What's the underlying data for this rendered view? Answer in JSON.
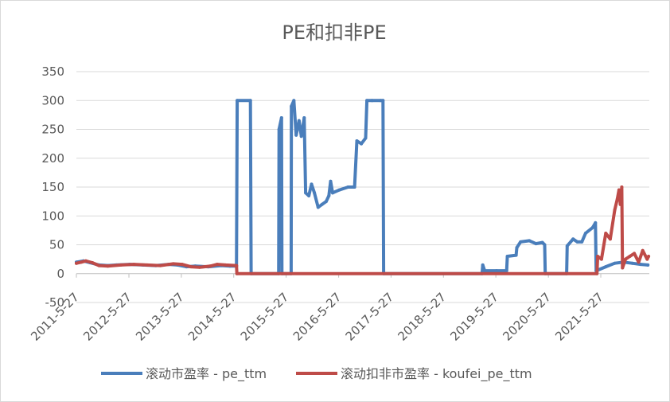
{
  "chart_data": {
    "type": "line",
    "title": "PE和扣非PE",
    "xlabel": "",
    "ylabel": "",
    "ylim": [
      -50,
      350
    ],
    "yticks": [
      -50,
      0,
      50,
      100,
      150,
      200,
      250,
      300,
      350
    ],
    "xlim": [
      "2011-05-27",
      "2022-04-30"
    ],
    "xticks": [
      "2011-5-27",
      "2012-5-27",
      "2013-5-27",
      "2014-5-27",
      "2015-5-27",
      "2016-5-27",
      "2017-5-27",
      "2018-5-27",
      "2019-5-27",
      "2020-5-27",
      "2021-5-27"
    ],
    "grid": "horizontal",
    "legend_position": "bottom",
    "series": [
      {
        "name": "滚动市盈率 - pe_ttm",
        "color": "#4a7ebb",
        "points": [
          [
            "2011-05-27",
            20
          ],
          [
            "2011-07-15",
            22
          ],
          [
            "2011-09-01",
            19
          ],
          [
            "2011-11-01",
            15
          ],
          [
            "2012-01-01",
            14
          ],
          [
            "2012-03-01",
            15
          ],
          [
            "2012-06-01",
            16
          ],
          [
            "2012-09-01",
            15
          ],
          [
            "2012-12-01",
            14
          ],
          [
            "2013-03-01",
            16
          ],
          [
            "2013-05-01",
            15
          ],
          [
            "2013-07-01",
            12
          ],
          [
            "2013-09-01",
            13
          ],
          [
            "2013-12-01",
            12
          ],
          [
            "2014-03-01",
            14
          ],
          [
            "2014-05-01",
            13
          ],
          [
            "2014-06-15",
            13
          ],
          [
            "2014-06-20",
            300
          ],
          [
            "2014-09-20",
            300
          ],
          [
            "2014-09-25",
            0
          ],
          [
            "2015-04-05",
            0
          ],
          [
            "2015-04-08",
            250
          ],
          [
            "2015-04-25",
            270
          ],
          [
            "2015-04-28",
            0
          ],
          [
            "2015-07-01",
            0
          ],
          [
            "2015-07-03",
            290
          ],
          [
            "2015-07-20",
            300
          ],
          [
            "2015-08-05",
            240
          ],
          [
            "2015-08-25",
            265
          ],
          [
            "2015-09-10",
            238
          ],
          [
            "2015-09-30",
            270
          ],
          [
            "2015-10-10",
            140
          ],
          [
            "2015-11-01",
            135
          ],
          [
            "2015-11-20",
            155
          ],
          [
            "2015-12-10",
            140
          ],
          [
            "2016-01-05",
            115
          ],
          [
            "2016-02-01",
            120
          ],
          [
            "2016-03-01",
            125
          ],
          [
            "2016-03-20",
            135
          ],
          [
            "2016-04-01",
            160
          ],
          [
            "2016-04-15",
            140
          ],
          [
            "2016-06-01",
            145
          ],
          [
            "2016-08-01",
            150
          ],
          [
            "2016-09-15",
            150
          ],
          [
            "2016-10-01",
            230
          ],
          [
            "2016-11-01",
            225
          ],
          [
            "2016-12-01",
            235
          ],
          [
            "2016-12-10",
            300
          ],
          [
            "2017-01-15",
            300
          ],
          [
            "2017-03-15",
            300
          ],
          [
            "2017-04-01",
            300
          ],
          [
            "2017-04-05",
            0
          ],
          [
            "2019-02-20",
            0
          ],
          [
            "2019-02-25",
            15
          ],
          [
            "2019-03-10",
            5
          ],
          [
            "2019-06-01",
            5
          ],
          [
            "2019-08-10",
            5
          ],
          [
            "2019-08-15",
            30
          ],
          [
            "2019-10-15",
            32
          ],
          [
            "2019-10-20",
            45
          ],
          [
            "2019-11-15",
            55
          ],
          [
            "2020-01-15",
            57
          ],
          [
            "2020-03-01",
            52
          ],
          [
            "2020-04-15",
            54
          ],
          [
            "2020-05-01",
            50
          ],
          [
            "2020-05-05",
            0
          ],
          [
            "2020-10-01",
            0
          ],
          [
            "2020-10-05",
            48
          ],
          [
            "2020-11-15",
            60
          ],
          [
            "2020-12-15",
            55
          ],
          [
            "2021-01-15",
            55
          ],
          [
            "2021-02-10",
            70
          ],
          [
            "2021-04-01",
            80
          ],
          [
            "2021-04-20",
            88
          ],
          [
            "2021-04-25",
            5
          ],
          [
            "2021-07-01",
            12
          ],
          [
            "2021-09-01",
            18
          ],
          [
            "2021-11-01",
            20
          ],
          [
            "2022-01-01",
            18
          ],
          [
            "2022-03-01",
            16
          ],
          [
            "2022-04-20",
            15
          ]
        ]
      },
      {
        "name": "滚动扣非市盈率 - koufei_pe_ttm",
        "color": "#be4b48",
        "points": [
          [
            "2011-05-27",
            18
          ],
          [
            "2011-07-01",
            20
          ],
          [
            "2011-08-01",
            22
          ],
          [
            "2011-09-15",
            19
          ],
          [
            "2011-11-01",
            14
          ],
          [
            "2012-01-01",
            13
          ],
          [
            "2012-04-01",
            15
          ],
          [
            "2012-07-01",
            16
          ],
          [
            "2012-10-01",
            15
          ],
          [
            "2013-01-01",
            14
          ],
          [
            "2013-04-01",
            17
          ],
          [
            "2013-06-01",
            16
          ],
          [
            "2013-08-01",
            12
          ],
          [
            "2013-10-01",
            11
          ],
          [
            "2013-12-15",
            13
          ],
          [
            "2014-02-01",
            16
          ],
          [
            "2014-04-01",
            15
          ],
          [
            "2014-06-15",
            14
          ],
          [
            "2014-06-18",
            0
          ],
          [
            "2021-04-30",
            0
          ],
          [
            "2021-05-05",
            30
          ],
          [
            "2021-06-01",
            25
          ],
          [
            "2021-07-01",
            70
          ],
          [
            "2021-08-01",
            60
          ],
          [
            "2021-09-01",
            110
          ],
          [
            "2021-09-20",
            130
          ],
          [
            "2021-10-01",
            145
          ],
          [
            "2021-10-10",
            120
          ],
          [
            "2021-10-20",
            150
          ],
          [
            "2021-10-25",
            10
          ],
          [
            "2021-11-15",
            25
          ],
          [
            "2021-12-15",
            30
          ],
          [
            "2022-01-15",
            35
          ],
          [
            "2022-02-15",
            20
          ],
          [
            "2022-03-15",
            40
          ],
          [
            "2022-04-15",
            25
          ],
          [
            "2022-04-25",
            30
          ]
        ]
      }
    ]
  }
}
